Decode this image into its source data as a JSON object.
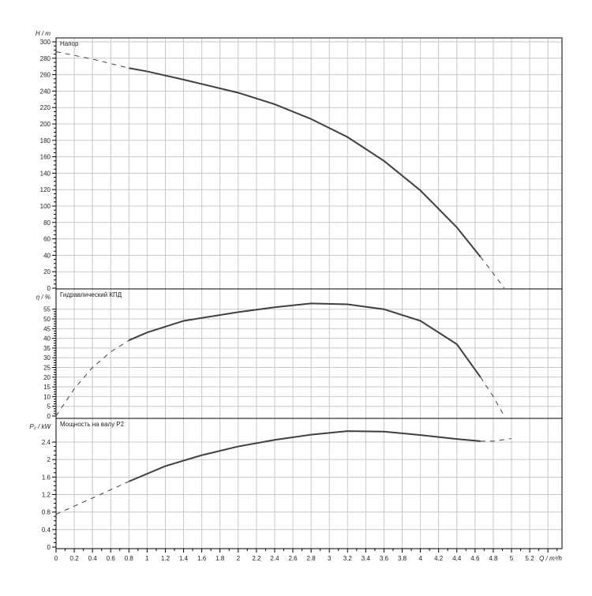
{
  "chart_data": [
    {
      "type": "line",
      "title": "Напор",
      "ylabel": "H / m",
      "ylim": [
        0,
        300
      ],
      "yticks": [
        0,
        20,
        40,
        60,
        80,
        100,
        120,
        140,
        160,
        180,
        200,
        220,
        240,
        260,
        280,
        300
      ],
      "grid": true,
      "series": [
        {
          "dashed_before": 0.8,
          "dashed_after": 4.66,
          "x": [
            0,
            0.4,
            0.8,
            1.0,
            1.4,
            2.0,
            2.4,
            2.8,
            3.2,
            3.6,
            4.0,
            4.4,
            4.66,
            4.8,
            4.92
          ],
          "y": [
            288,
            279,
            268,
            264,
            254,
            238,
            224,
            206,
            184,
            155,
            119,
            74,
            38,
            18,
            0
          ]
        }
      ]
    },
    {
      "type": "line",
      "title": "Гидравлический КПД",
      "ylabel": "η / %",
      "ylim": [
        0,
        60
      ],
      "yticks": [
        0,
        5,
        10,
        15,
        20,
        25,
        30,
        35,
        40,
        45,
        50,
        55
      ],
      "grid": true,
      "series": [
        {
          "dashed_before": 0.8,
          "dashed_after": 4.66,
          "x": [
            0,
            0.2,
            0.4,
            0.6,
            0.8,
            1.0,
            1.4,
            2.0,
            2.4,
            2.8,
            3.2,
            3.6,
            4.0,
            4.4,
            4.66,
            4.8,
            4.92
          ],
          "y": [
            0,
            14,
            25,
            33,
            39,
            43,
            49,
            53.5,
            56,
            58,
            57.5,
            55,
            49,
            37,
            20,
            10,
            0
          ]
        }
      ]
    },
    {
      "type": "line",
      "title": "Мощность на валу P2",
      "ylabel": "P₂ / kW",
      "ylim": [
        0,
        2.95
      ],
      "yticks": [
        0,
        0.4,
        0.8,
        1.2,
        1.6,
        2.0,
        2.4
      ],
      "grid": true,
      "series": [
        {
          "dashed_before": 0.8,
          "dashed_after": 4.66,
          "x": [
            0,
            0.4,
            0.8,
            1.2,
            1.6,
            2.0,
            2.4,
            2.8,
            3.2,
            3.6,
            4.0,
            4.4,
            4.66,
            4.8,
            5.0
          ],
          "y": [
            0.75,
            1.12,
            1.5,
            1.85,
            2.1,
            2.3,
            2.45,
            2.57,
            2.65,
            2.64,
            2.56,
            2.47,
            2.42,
            2.42,
            2.48
          ]
        }
      ]
    }
  ],
  "xaxis": {
    "label": "Q / m³/h",
    "xlim": [
      0,
      5.55
    ],
    "ticks": [
      0,
      0.2,
      0.4,
      0.6,
      0.8,
      1,
      1.2,
      1.4,
      1.6,
      1.8,
      2,
      2.2,
      2.4,
      2.6,
      2.8,
      3,
      3.2,
      3.4,
      3.6,
      3.8,
      4,
      4.2,
      4.4,
      4.6,
      4.8,
      5,
      5.2
    ]
  },
  "colors": {
    "curve": "#3a3f4a",
    "grid": "#c8c8c8",
    "axis": "#000000"
  }
}
